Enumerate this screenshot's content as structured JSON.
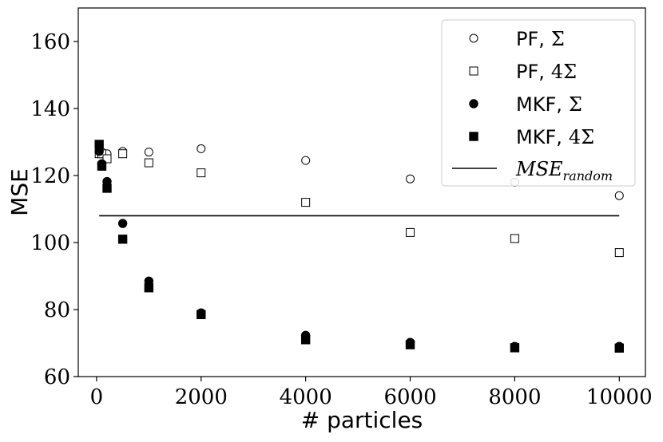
{
  "chart_data": {
    "type": "scatter",
    "xlabel": "# particles",
    "ylabel": "MSE",
    "xlim": [
      -350,
      10500
    ],
    "ylim": [
      60,
      170
    ],
    "xticks": [
      0,
      2000,
      4000,
      6000,
      8000,
      10000
    ],
    "yticks": [
      60,
      80,
      100,
      120,
      140,
      160
    ],
    "grid": false,
    "legend_position": "top-right",
    "series": [
      {
        "name": "PF, Σ",
        "name_text": "PF,",
        "name_math": "Σ",
        "marker": "circle-open",
        "x": [
          50,
          100,
          200,
          500,
          1000,
          2000,
          4000,
          6000,
          8000,
          10000
        ],
        "y": [
          127.5,
          127,
          126.5,
          127.2,
          127,
          128,
          124.5,
          119,
          118,
          114
        ]
      },
      {
        "name": "PF, 4Σ",
        "name_text": "PF,",
        "name_math": "4Σ",
        "marker": "square-open",
        "x": [
          50,
          100,
          200,
          500,
          1000,
          2000,
          4000,
          6000,
          8000,
          10000
        ],
        "y": [
          126.5,
          126.5,
          125,
          126.5,
          123.8,
          120.8,
          112,
          103,
          101.2,
          97
        ]
      },
      {
        "name": "MKF, Σ",
        "name_text": "MKF,",
        "name_math": "Σ",
        "marker": "circle-filled",
        "x": [
          50,
          100,
          200,
          500,
          1000,
          2000,
          4000,
          6000,
          8000,
          10000
        ],
        "y": [
          127.2,
          123.5,
          118.2,
          105.7,
          88.5,
          79,
          72.3,
          70.2,
          69,
          69
        ]
      },
      {
        "name": "MKF, 4Σ",
        "name_text": "MKF,",
        "name_math": "4Σ",
        "marker": "square-filled",
        "x": [
          50,
          100,
          200,
          500,
          1000,
          2000,
          4000,
          6000,
          8000,
          10000
        ],
        "y": [
          129.3,
          122.8,
          116.2,
          101,
          86.5,
          78.5,
          71,
          69.5,
          68.6,
          68.5
        ]
      }
    ],
    "reference_line": {
      "name": "MSE_random",
      "label_main": "MSE",
      "label_sub": "random",
      "y": 108,
      "x_range": [
        50,
        10000
      ]
    }
  }
}
